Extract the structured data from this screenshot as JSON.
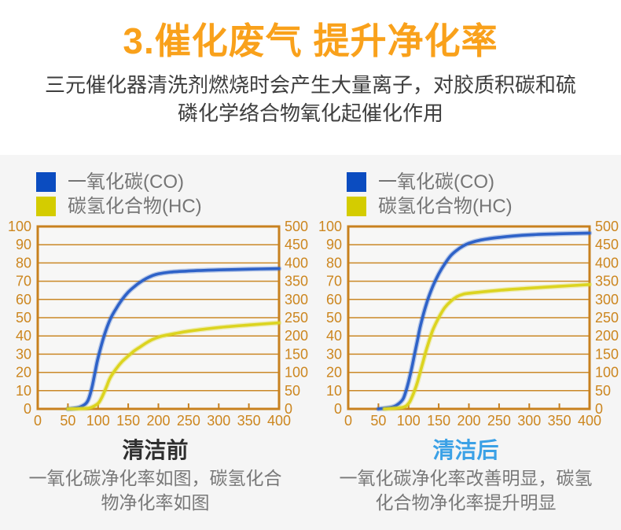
{
  "header": {
    "title": "3.催化废气 提升净化率",
    "subtitle_line1": "三元催化器清洗剂燃烧时会产生大量离子，对胶质积碳和硫",
    "subtitle_line2": "磷化学络合物氧化起催化作用"
  },
  "colors": {
    "title_orange": "#F9A11B",
    "axis": "#C8811F",
    "grid": "#CA8826",
    "tick_label": "#CC861F",
    "plot_bg": "#F7F7F6",
    "co_blue": "#2E62C8",
    "hc_yellow": "#DCD41F",
    "legend_co_blue": "#0B4CC0",
    "legend_hc_yellow": "#D4CC00",
    "after_title_blue": "#3BA1E6"
  },
  "chart_data": [
    {
      "type": "line",
      "title": "清洁前",
      "title_color": "#2F2F2F",
      "caption": "一氧化碳净化率如图，碳氢化合物净化率如图",
      "legend": [
        {
          "label": "一氧化碳(CO)",
          "color": "#0B4CC0"
        },
        {
          "label": "碳氢化合物(HC)",
          "color": "#D4CC00"
        }
      ],
      "legend_position": "top-left",
      "grid": "horizontal",
      "xlim": [
        0,
        400
      ],
      "ylim_left": [
        0,
        100
      ],
      "ylim_right": [
        0,
        500
      ],
      "x_ticks": [
        0,
        50,
        100,
        150,
        200,
        250,
        300,
        350,
        400
      ],
      "y_left_ticks": [
        0,
        10,
        20,
        30,
        40,
        50,
        60,
        70,
        80,
        90,
        100
      ],
      "y_right_ticks": [
        0,
        50,
        100,
        150,
        200,
        250,
        300,
        350,
        400,
        450,
        500
      ],
      "series": [
        {
          "name": "一氧化碳(CO)",
          "axis": "left",
          "color": "#2E62C8",
          "points": [
            [
              50,
              0
            ],
            [
              60,
              0.3
            ],
            [
              70,
              1
            ],
            [
              80,
              3
            ],
            [
              85,
              6
            ],
            [
              90,
              12
            ],
            [
              95,
              20
            ],
            [
              100,
              28
            ],
            [
              110,
              40
            ],
            [
              120,
              49
            ],
            [
              130,
              55
            ],
            [
              140,
              60
            ],
            [
              150,
              64
            ],
            [
              160,
              67
            ],
            [
              170,
              69.5
            ],
            [
              180,
              71.5
            ],
            [
              190,
              73
            ],
            [
              200,
              74
            ],
            [
              220,
              75
            ],
            [
              250,
              75.6
            ],
            [
              300,
              76.2
            ],
            [
              350,
              76.6
            ],
            [
              400,
              76.9
            ]
          ]
        },
        {
          "name": "碳氢化合物(HC)",
          "axis": "left",
          "color": "#DCD41F",
          "points": [
            [
              50,
              0
            ],
            [
              80,
              0.3
            ],
            [
              90,
              1
            ],
            [
              100,
              3
            ],
            [
              105,
              5.5
            ],
            [
              110,
              9
            ],
            [
              115,
              13
            ],
            [
              120,
              17
            ],
            [
              130,
              22
            ],
            [
              140,
              26
            ],
            [
              150,
              29
            ],
            [
              160,
              31.8
            ],
            [
              170,
              34
            ],
            [
              180,
              36.2
            ],
            [
              190,
              38
            ],
            [
              200,
              39.3
            ],
            [
              210,
              40.2
            ],
            [
              250,
              42.6
            ],
            [
              300,
              44.6
            ],
            [
              350,
              46
            ],
            [
              400,
              47.2
            ]
          ]
        }
      ]
    },
    {
      "type": "line",
      "title": "清洁后",
      "title_color": "#3BA1E6",
      "caption": "一氧化碳净化率改善明显，碳氢化合物净化率提升明显",
      "legend": [
        {
          "label": "一氧化碳(CO)",
          "color": "#0B4CC0"
        },
        {
          "label": "碳氢化合物(HC)",
          "color": "#D4CC00"
        }
      ],
      "legend_position": "top-left",
      "grid": "horizontal",
      "xlim": [
        0,
        400
      ],
      "ylim_left": [
        0,
        100
      ],
      "ylim_right": [
        0,
        500
      ],
      "x_ticks": [
        0,
        50,
        100,
        150,
        200,
        250,
        300,
        350,
        400
      ],
      "y_left_ticks": [
        0,
        10,
        20,
        30,
        40,
        50,
        60,
        70,
        80,
        90,
        100
      ],
      "y_right_ticks": [
        0,
        50,
        100,
        150,
        200,
        250,
        300,
        350,
        400,
        450,
        500
      ],
      "series": [
        {
          "name": "一氧化碳(CO)",
          "axis": "left",
          "color": "#2E62C8",
          "points": [
            [
              50,
              0
            ],
            [
              70,
              0.8
            ],
            [
              80,
              2
            ],
            [
              90,
              5
            ],
            [
              95,
              9
            ],
            [
              100,
              15
            ],
            [
              105,
              22
            ],
            [
              110,
              30
            ],
            [
              115,
              38
            ],
            [
              120,
              46
            ],
            [
              130,
              58
            ],
            [
              140,
              67
            ],
            [
              150,
              74
            ],
            [
              160,
              79.5
            ],
            [
              170,
              84
            ],
            [
              180,
              87
            ],
            [
              190,
              89.2
            ],
            [
              200,
              90.8
            ],
            [
              220,
              92.6
            ],
            [
              250,
              94
            ],
            [
              300,
              95.4
            ],
            [
              350,
              96
            ],
            [
              400,
              96.4
            ]
          ]
        },
        {
          "name": "碳氢化合物(HC)",
          "axis": "left",
          "color": "#DCD41F",
          "points": [
            [
              60,
              0
            ],
            [
              90,
              0.8
            ],
            [
              100,
              3
            ],
            [
              105,
              6
            ],
            [
              110,
              10
            ],
            [
              115,
              15
            ],
            [
              120,
              21
            ],
            [
              125,
              27
            ],
            [
              130,
              33
            ],
            [
              140,
              43
            ],
            [
              150,
              50
            ],
            [
              160,
              55.5
            ],
            [
              170,
              59
            ],
            [
              180,
              61.5
            ],
            [
              190,
              62.8
            ],
            [
              200,
              63.4
            ],
            [
              250,
              65
            ],
            [
              300,
              66.2
            ],
            [
              350,
              67.2
            ],
            [
              400,
              68.2
            ]
          ]
        }
      ]
    }
  ]
}
